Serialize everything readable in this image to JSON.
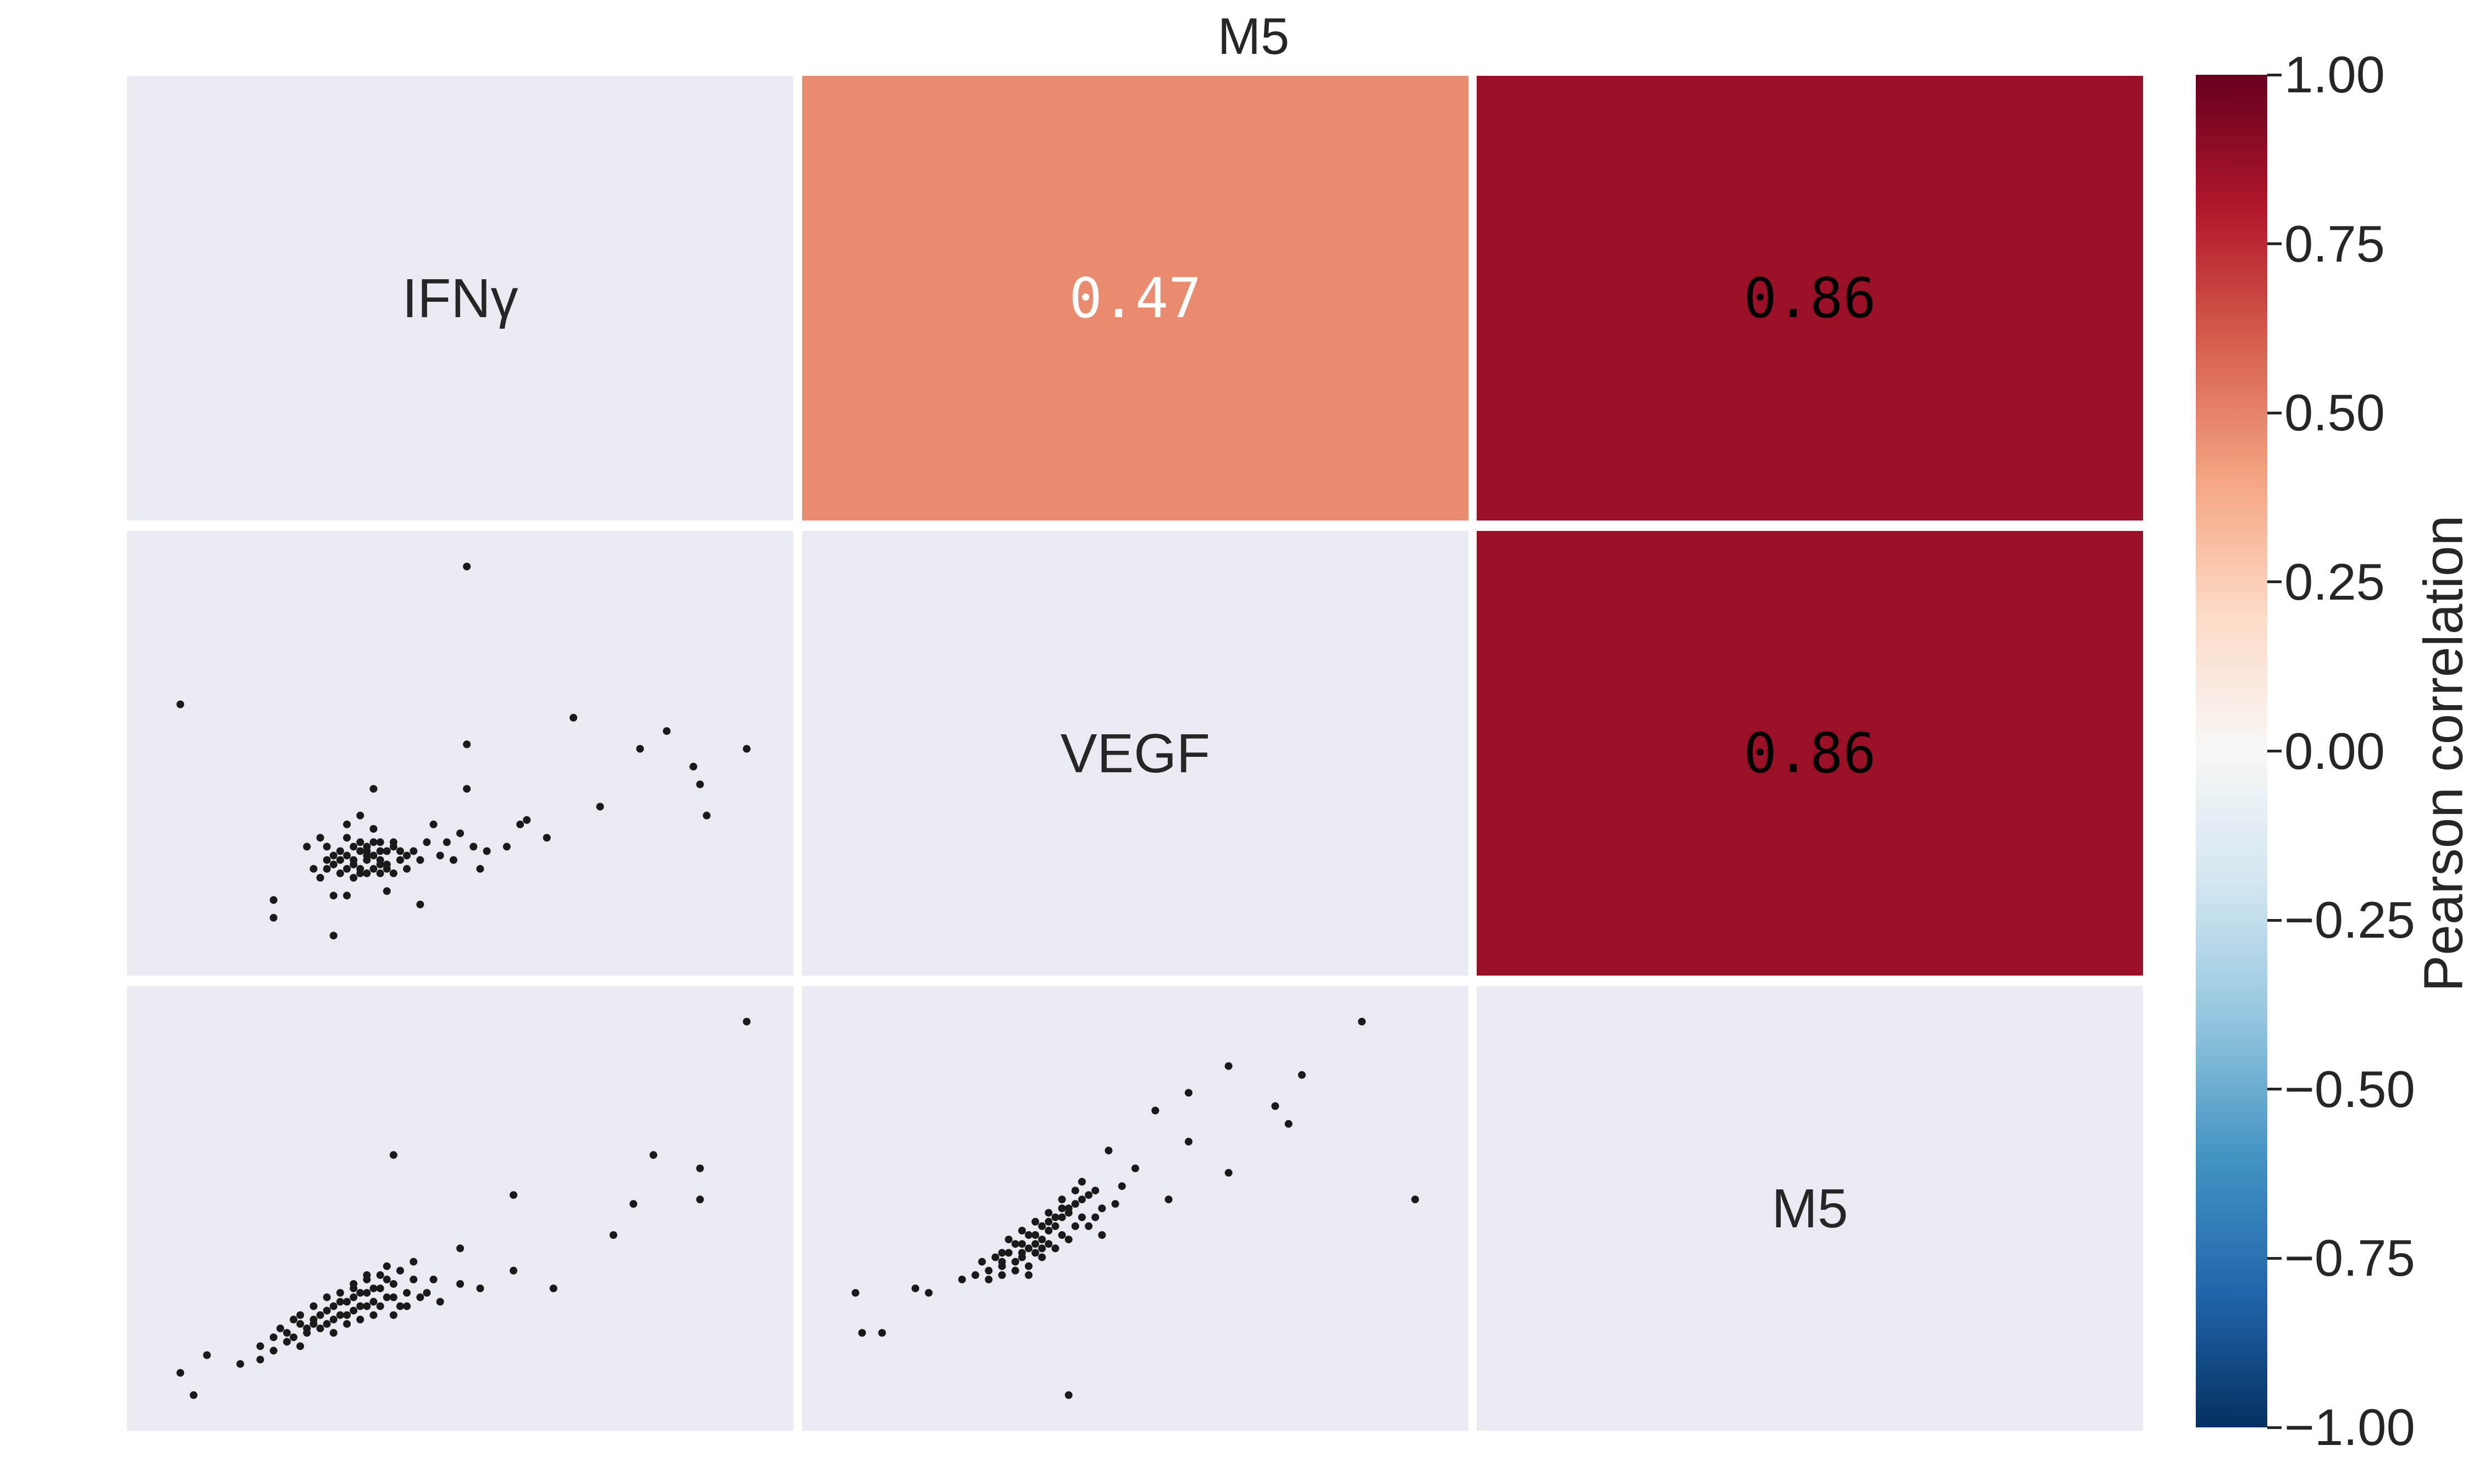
{
  "chart_data": {
    "type": "scatter",
    "title": "M5",
    "variables": [
      "IFNγ",
      "VEGF",
      "M5"
    ],
    "correlations": {
      "IFNγ_VEGF": 0.47,
      "IFNγ_M5": 0.86,
      "VEGF_M5": 0.86
    },
    "upper_cells": [
      {
        "row": 0,
        "col": 1,
        "value": 0.47,
        "text": "0.47",
        "color": "#E98B6F",
        "text_color": "#FFFFFF"
      },
      {
        "row": 0,
        "col": 2,
        "value": 0.86,
        "text": "0.86",
        "color": "#9A1127",
        "text_color": "#000000"
      },
      {
        "row": 1,
        "col": 2,
        "value": 0.86,
        "text": "0.86",
        "color": "#9A1127",
        "text_color": "#000000"
      }
    ],
    "scatter_panels": [
      {
        "row": 1,
        "col": 0,
        "x_variable": "IFNγ",
        "y_variable": "VEGF",
        "points": [
          [
            0.08,
            0.39
          ],
          [
            0.51,
            0.08
          ],
          [
            0.67,
            0.42
          ],
          [
            0.81,
            0.45
          ],
          [
            0.77,
            0.49
          ],
          [
            0.93,
            0.49
          ],
          [
            0.85,
            0.53
          ],
          [
            0.86,
            0.57
          ],
          [
            0.51,
            0.48
          ],
          [
            0.51,
            0.58
          ],
          [
            0.87,
            0.64
          ],
          [
            0.71,
            0.62
          ],
          [
            0.6,
            0.65
          ],
          [
            0.59,
            0.66
          ],
          [
            0.63,
            0.69
          ],
          [
            0.22,
            0.83
          ],
          [
            0.22,
            0.87
          ],
          [
            0.31,
            0.91
          ],
          [
            0.31,
            0.82
          ],
          [
            0.37,
            0.58
          ],
          [
            0.33,
            0.82
          ],
          [
            0.39,
            0.81
          ],
          [
            0.44,
            0.84
          ],
          [
            0.35,
            0.76
          ],
          [
            0.36,
            0.72
          ],
          [
            0.38,
            0.7
          ],
          [
            0.4,
            0.71
          ],
          [
            0.42,
            0.73
          ],
          [
            0.48,
            0.7
          ],
          [
            0.5,
            0.68
          ],
          [
            0.52,
            0.71
          ],
          [
            0.54,
            0.72
          ],
          [
            0.57,
            0.71
          ],
          [
            0.46,
            0.66
          ],
          [
            0.28,
            0.76
          ],
          [
            0.3,
            0.74
          ],
          [
            0.32,
            0.77
          ],
          [
            0.34,
            0.75
          ],
          [
            0.36,
            0.77
          ],
          [
            0.38,
            0.74
          ],
          [
            0.4,
            0.77
          ],
          [
            0.3,
            0.71
          ],
          [
            0.33,
            0.69
          ],
          [
            0.35,
            0.72
          ],
          [
            0.37,
            0.76
          ],
          [
            0.39,
            0.72
          ],
          [
            0.41,
            0.74
          ],
          [
            0.43,
            0.72
          ],
          [
            0.45,
            0.7
          ],
          [
            0.31,
            0.75
          ],
          [
            0.33,
            0.73
          ],
          [
            0.34,
            0.78
          ],
          [
            0.36,
            0.74
          ],
          [
            0.38,
            0.77
          ],
          [
            0.32,
            0.72
          ],
          [
            0.35,
            0.7
          ],
          [
            0.37,
            0.73
          ],
          [
            0.39,
            0.75
          ],
          [
            0.29,
            0.78
          ],
          [
            0.31,
            0.73
          ],
          [
            0.34,
            0.74
          ],
          [
            0.36,
            0.71
          ],
          [
            0.38,
            0.72
          ],
          [
            0.4,
            0.7
          ],
          [
            0.42,
            0.76
          ],
          [
            0.33,
            0.76
          ],
          [
            0.35,
            0.77
          ],
          [
            0.37,
            0.7
          ],
          [
            0.39,
            0.76
          ],
          [
            0.41,
            0.72
          ],
          [
            0.3,
            0.76
          ],
          [
            0.32,
            0.74
          ],
          [
            0.34,
            0.71
          ],
          [
            0.36,
            0.73
          ],
          [
            0.38,
            0.75
          ],
          [
            0.44,
            0.74
          ],
          [
            0.47,
            0.73
          ],
          [
            0.27,
            0.71
          ],
          [
            0.29,
            0.69
          ],
          [
            0.33,
            0.66
          ],
          [
            0.35,
            0.64
          ],
          [
            0.37,
            0.67
          ],
          [
            0.49,
            0.74
          ],
          [
            0.53,
            0.76
          ]
        ]
      },
      {
        "row": 2,
        "col": 0,
        "x_variable": "IFNγ",
        "y_variable": "M5",
        "points": [
          [
            0.08,
            0.87
          ],
          [
            0.1,
            0.92
          ],
          [
            0.93,
            0.08
          ],
          [
            0.4,
            0.38
          ],
          [
            0.79,
            0.38
          ],
          [
            0.86,
            0.41
          ],
          [
            0.86,
            0.48
          ],
          [
            0.58,
            0.47
          ],
          [
            0.76,
            0.49
          ],
          [
            0.73,
            0.56
          ],
          [
            0.58,
            0.64
          ],
          [
            0.64,
            0.68
          ],
          [
            0.5,
            0.59
          ],
          [
            0.43,
            0.62
          ],
          [
            0.46,
            0.66
          ],
          [
            0.5,
            0.67
          ],
          [
            0.53,
            0.68
          ],
          [
            0.12,
            0.83
          ],
          [
            0.17,
            0.85
          ],
          [
            0.2,
            0.81
          ],
          [
            0.22,
            0.79
          ],
          [
            0.24,
            0.78
          ],
          [
            0.26,
            0.76
          ],
          [
            0.28,
            0.75
          ],
          [
            0.3,
            0.73
          ],
          [
            0.32,
            0.71
          ],
          [
            0.34,
            0.7
          ],
          [
            0.36,
            0.69
          ],
          [
            0.38,
            0.68
          ],
          [
            0.4,
            0.67
          ],
          [
            0.42,
            0.69
          ],
          [
            0.44,
            0.7
          ],
          [
            0.25,
            0.79
          ],
          [
            0.27,
            0.78
          ],
          [
            0.29,
            0.77
          ],
          [
            0.31,
            0.75
          ],
          [
            0.33,
            0.74
          ],
          [
            0.35,
            0.72
          ],
          [
            0.37,
            0.71
          ],
          [
            0.39,
            0.7
          ],
          [
            0.41,
            0.72
          ],
          [
            0.28,
            0.72
          ],
          [
            0.3,
            0.7
          ],
          [
            0.32,
            0.69
          ],
          [
            0.34,
            0.67
          ],
          [
            0.36,
            0.66
          ],
          [
            0.38,
            0.65
          ],
          [
            0.39,
            0.63
          ],
          [
            0.26,
            0.74
          ],
          [
            0.28,
            0.76
          ],
          [
            0.31,
            0.78
          ],
          [
            0.33,
            0.76
          ],
          [
            0.35,
            0.75
          ],
          [
            0.37,
            0.74
          ],
          [
            0.4,
            0.74
          ],
          [
            0.42,
            0.72
          ],
          [
            0.29,
            0.74
          ],
          [
            0.31,
            0.72
          ],
          [
            0.33,
            0.71
          ],
          [
            0.35,
            0.69
          ],
          [
            0.37,
            0.68
          ],
          [
            0.34,
            0.73
          ],
          [
            0.36,
            0.72
          ],
          [
            0.32,
            0.74
          ],
          [
            0.3,
            0.76
          ],
          [
            0.27,
            0.77
          ],
          [
            0.24,
            0.8
          ],
          [
            0.23,
            0.77
          ],
          [
            0.25,
            0.75
          ],
          [
            0.38,
            0.72
          ],
          [
            0.4,
            0.7
          ],
          [
            0.43,
            0.66
          ],
          [
            0.45,
            0.69
          ],
          [
            0.47,
            0.71
          ],
          [
            0.36,
            0.65
          ],
          [
            0.34,
            0.68
          ],
          [
            0.39,
            0.66
          ],
          [
            0.41,
            0.64
          ],
          [
            0.22,
            0.82
          ],
          [
            0.26,
            0.81
          ],
          [
            0.2,
            0.84
          ]
        ]
      },
      {
        "row": 2,
        "col": 1,
        "x_variable": "VEGF",
        "y_variable": "M5",
        "points": [
          [
            0.08,
            0.69
          ],
          [
            0.09,
            0.78
          ],
          [
            0.12,
            0.78
          ],
          [
            0.17,
            0.68
          ],
          [
            0.19,
            0.69
          ],
          [
            0.4,
            0.92
          ],
          [
            0.64,
            0.42
          ],
          [
            0.58,
            0.35
          ],
          [
            0.53,
            0.28
          ],
          [
            0.58,
            0.24
          ],
          [
            0.64,
            0.18
          ],
          [
            0.75,
            0.2
          ],
          [
            0.71,
            0.27
          ],
          [
            0.73,
            0.31
          ],
          [
            0.84,
            0.08
          ],
          [
            0.92,
            0.48
          ],
          [
            0.55,
            0.48
          ],
          [
            0.48,
            0.45
          ],
          [
            0.5,
            0.41
          ],
          [
            0.46,
            0.37
          ],
          [
            0.44,
            0.46
          ],
          [
            0.24,
            0.66
          ],
          [
            0.26,
            0.65
          ],
          [
            0.28,
            0.64
          ],
          [
            0.3,
            0.63
          ],
          [
            0.32,
            0.62
          ],
          [
            0.33,
            0.6
          ],
          [
            0.34,
            0.59
          ],
          [
            0.35,
            0.58
          ],
          [
            0.36,
            0.57
          ],
          [
            0.37,
            0.55
          ],
          [
            0.38,
            0.54
          ],
          [
            0.39,
            0.52
          ],
          [
            0.4,
            0.51
          ],
          [
            0.41,
            0.49
          ],
          [
            0.42,
            0.48
          ],
          [
            0.43,
            0.47
          ],
          [
            0.29,
            0.61
          ],
          [
            0.31,
            0.6
          ],
          [
            0.33,
            0.58
          ],
          [
            0.35,
            0.56
          ],
          [
            0.37,
            0.53
          ],
          [
            0.39,
            0.5
          ],
          [
            0.27,
            0.62
          ],
          [
            0.3,
            0.65
          ],
          [
            0.32,
            0.64
          ],
          [
            0.34,
            0.63
          ],
          [
            0.36,
            0.61
          ],
          [
            0.38,
            0.59
          ],
          [
            0.4,
            0.57
          ],
          [
            0.31,
            0.57
          ],
          [
            0.33,
            0.55
          ],
          [
            0.35,
            0.53
          ],
          [
            0.37,
            0.51
          ],
          [
            0.39,
            0.48
          ],
          [
            0.41,
            0.46
          ],
          [
            0.28,
            0.66
          ],
          [
            0.3,
            0.6
          ],
          [
            0.32,
            0.58
          ],
          [
            0.34,
            0.56
          ],
          [
            0.36,
            0.54
          ],
          [
            0.38,
            0.52
          ],
          [
            0.4,
            0.5
          ],
          [
            0.42,
            0.52
          ],
          [
            0.44,
            0.52
          ],
          [
            0.45,
            0.5
          ],
          [
            0.47,
            0.49
          ],
          [
            0.33,
            0.61
          ],
          [
            0.35,
            0.6
          ],
          [
            0.37,
            0.58
          ],
          [
            0.39,
            0.56
          ],
          [
            0.41,
            0.54
          ],
          [
            0.3,
            0.62
          ],
          [
            0.36,
            0.59
          ],
          [
            0.34,
            0.65
          ],
          [
            0.43,
            0.54
          ],
          [
            0.45,
            0.56
          ],
          [
            0.42,
            0.44
          ]
        ]
      }
    ],
    "colorbar": {
      "label": "Pearson correlation",
      "cmap": "RdBu_r",
      "range": [
        -1.0,
        1.0
      ],
      "ticks": [
        1.0,
        0.75,
        0.5,
        0.25,
        0.0,
        -0.25,
        -0.5,
        -0.75,
        -1.0
      ],
      "tick_labels": [
        "1.00",
        "0.75",
        "0.50",
        "0.25",
        "0.00",
        "−0.25",
        "−0.50",
        "−0.75",
        "−1.00"
      ],
      "colors": [
        "#053061",
        "#2166AC",
        "#4393C3",
        "#92C5DE",
        "#D1E5F0",
        "#F7F7F7",
        "#FDDBC7",
        "#F4A582",
        "#D6604D",
        "#B2182B",
        "#67001F"
      ]
    },
    "panel_background": "#EAEAF2",
    "point_color": "#1A1A1A",
    "grid": false
  }
}
